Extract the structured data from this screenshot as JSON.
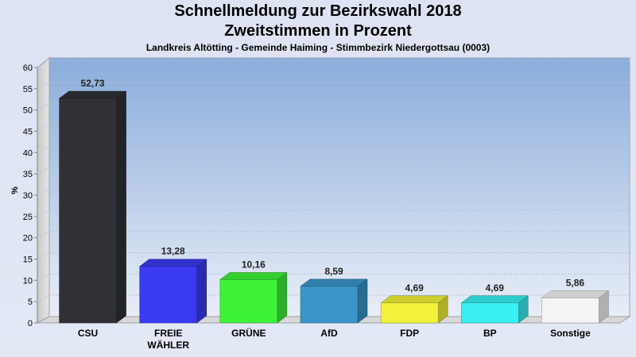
{
  "header": {
    "title_line1": "Schnellmeldung zur Bezirkswahl 2018",
    "title_line2": "Zweitstimmen in Prozent",
    "subtitle": "Landkreis Altötting - Gemeinde Haiming - Stimmbezirk Niedergottsau (0003)"
  },
  "chart_data": {
    "type": "bar",
    "title": "Schnellmeldung zur Bezirkswahl 2018 Zweitstimmen in Prozent",
    "subtitle": "Landkreis Altötting - Gemeinde Haiming - Stimmbezirk Niedergottsau (0003)",
    "ylabel": "%",
    "xlabel": "",
    "ylim": [
      0,
      60
    ],
    "yticks": [
      0,
      5,
      10,
      15,
      20,
      25,
      30,
      35,
      40,
      45,
      50,
      55,
      60
    ],
    "grid": true,
    "categories": [
      [
        "CSU"
      ],
      [
        "FREIE",
        "WÄHLER"
      ],
      [
        "GRÜNE"
      ],
      [
        "AfD"
      ],
      [
        "FDP"
      ],
      [
        "BP"
      ],
      [
        "Sonstige"
      ]
    ],
    "values": [
      52.73,
      13.28,
      10.16,
      8.59,
      4.69,
      4.69,
      5.86
    ],
    "value_labels": [
      "52,73",
      "13,28",
      "10,16",
      "8,59",
      "4,69",
      "4,69",
      "5,86"
    ],
    "colors": [
      "#2f3136",
      "#3a3af2",
      "#3ef23a",
      "#3a95c9",
      "#f2f23a",
      "#3af0f2",
      "#f5f5f5"
    ]
  }
}
